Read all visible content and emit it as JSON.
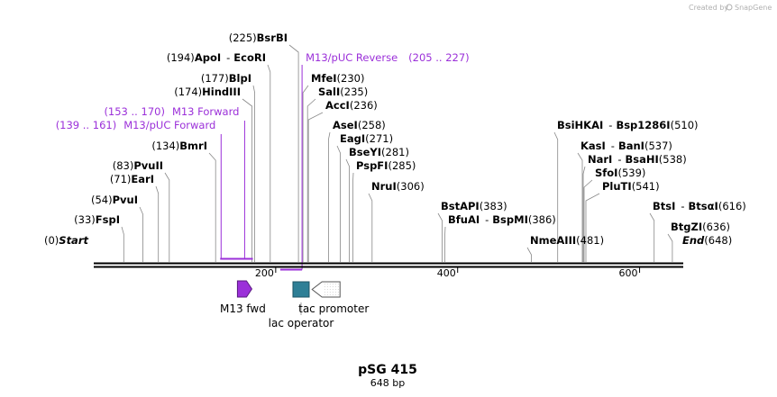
{
  "credit": {
    "text": "Created by",
    "brand": "SnapGene"
  },
  "title": "pSG 415",
  "length_label": "648 bp",
  "total_bp": 648,
  "colors": {
    "primer": "#9b30d9",
    "operator": "#2e7f96",
    "line": "#000000",
    "leader": "#888888"
  },
  "ticks": [
    {
      "pos": 200,
      "label": "200"
    },
    {
      "pos": 400,
      "label": "400"
    },
    {
      "pos": 600,
      "label": "600"
    }
  ],
  "sites": [
    {
      "num": "(0)",
      "name": "Start",
      "pos": 0,
      "style": "italic"
    },
    {
      "num": "(33)",
      "name": "FspI",
      "pos": 33
    },
    {
      "num": "(54)",
      "name": "PvuI",
      "pos": 54
    },
    {
      "num": "(71)",
      "name": "EarI",
      "pos": 71
    },
    {
      "num": "(83)",
      "name": "PvuII",
      "pos": 83
    },
    {
      "num": "(134)",
      "name": "BmrI",
      "pos": 134
    },
    {
      "num": "(174)",
      "name": "HindIII",
      "pos": 174
    },
    {
      "num": "(177)",
      "name": "BlpI",
      "pos": 177
    },
    {
      "num": "(194)",
      "name": "ApoI",
      "name2": "EcoRI",
      "pos": 194
    },
    {
      "num": "(225)",
      "name": "BsrBI",
      "pos": 225
    },
    {
      "num": "(230)",
      "name": "MfeI",
      "pos": 230,
      "side": "right"
    },
    {
      "num": "(235)",
      "name": "SalI",
      "pos": 235,
      "side": "right"
    },
    {
      "num": "(236)",
      "name": "AccI",
      "pos": 236,
      "side": "right"
    },
    {
      "num": "(258)",
      "name": "AseI",
      "pos": 258,
      "side": "right"
    },
    {
      "num": "(271)",
      "name": "EagI",
      "pos": 271,
      "side": "right"
    },
    {
      "num": "(281)",
      "name": "BseYI",
      "pos": 281,
      "side": "right"
    },
    {
      "num": "(285)",
      "name": "PspFI",
      "pos": 285,
      "side": "right"
    },
    {
      "num": "(306)",
      "name": "NruI",
      "pos": 306,
      "side": "right"
    },
    {
      "num": "(383)",
      "name": "BstAPI",
      "pos": 383,
      "side": "right"
    },
    {
      "num": "(386)",
      "name": "BfuAI",
      "name2": "BspMI",
      "pos": 386,
      "side": "right"
    },
    {
      "num": "(481)",
      "name": "NmeAIII",
      "pos": 481,
      "side": "right"
    },
    {
      "num": "(510)",
      "name": "BsiHKAI",
      "name2": "Bsp1286I",
      "pos": 510,
      "side": "right"
    },
    {
      "num": "(537)",
      "name": "KasI",
      "name2": "BanI",
      "pos": 537,
      "side": "right"
    },
    {
      "num": "(538)",
      "name": "NarI",
      "name2": "BsaHI",
      "pos": 538,
      "side": "right"
    },
    {
      "num": "(539)",
      "name": "SfoI",
      "pos": 539,
      "side": "right"
    },
    {
      "num": "(541)",
      "name": "PluTI",
      "pos": 541,
      "side": "right"
    },
    {
      "num": "(616)",
      "name": "BtsI",
      "name2": "BtsαI",
      "pos": 616,
      "side": "right"
    },
    {
      "num": "(636)",
      "name": "BtgZI",
      "pos": 636,
      "side": "right"
    },
    {
      "num": "(648)",
      "name": "End",
      "pos": 648,
      "side": "right",
      "style": "italic"
    }
  ],
  "primers": [
    {
      "name": "M13/pUC Forward",
      "range": "(139 .. 161)",
      "start": 139,
      "end": 161,
      "strand": "forward"
    },
    {
      "name": "M13 Forward",
      "range": "(153 .. 170)",
      "start": 153,
      "end": 170,
      "strand": "forward"
    },
    {
      "name": "M13/pUC Reverse",
      "range": "(205 .. 227)",
      "start": 205,
      "end": 227,
      "strand": "reverse"
    }
  ],
  "features": [
    {
      "name": "M13 fwd",
      "start": 153,
      "end": 170,
      "type": "primer_bind"
    },
    {
      "name": "lac operator",
      "start": 215,
      "end": 232,
      "type": "operator"
    },
    {
      "name": "tac promoter",
      "start": 239,
      "end": 268,
      "type": "promoter"
    }
  ]
}
